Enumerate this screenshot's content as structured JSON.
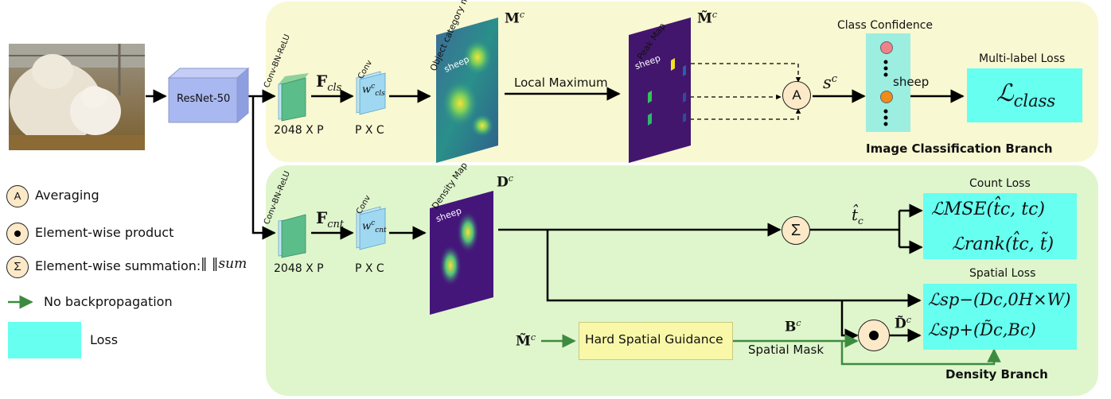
{
  "branches": {
    "classification": "Image Classification Branch",
    "density": "Density Branch"
  },
  "backbone": "ResNet-50",
  "cls_branch": {
    "block1_label": "Conv-BN-ReLU",
    "feature_symbol": "F",
    "feature_sub": "cls",
    "dim1": "2048 X P",
    "conv_label": "Conv",
    "conv_weight_sub": "cls",
    "dim2": "P X C",
    "map_title": "Object category map",
    "map_class": "sheep",
    "map_symbol": "M",
    "op_label": "Local Maximum",
    "peak_title": "Peak Map",
    "peak_class": "sheep",
    "peak_symbol": "M̃",
    "avg_letter": "A",
    "score_symbol": "s",
    "confidence_title": "Class Confidence",
    "confidence_class": "sheep",
    "loss_title": "Multi-label Loss",
    "loss_formula": "class"
  },
  "density_branch": {
    "block1_label": "Conv-BN-ReLU",
    "feature_symbol": "F",
    "feature_sub": "cnt",
    "dim1": "2048 X P",
    "conv_label": "Conv",
    "conv_weight_sub": "cnt",
    "dim2": "P X C",
    "map_title": "Density Map",
    "map_class": "sheep",
    "map_symbol": "D",
    "sum_glyph": "Σ",
    "count_symbol": "t̂",
    "count_loss_title": "Count Loss",
    "count_loss_1": "ℒMSE(t̂c, tc)",
    "count_loss_2": "ℒrank(t̂c, t̃)",
    "guidance_input": "M̃",
    "guidance_label": "Hard Spatial Guidance",
    "mask_symbol": "B",
    "mask_label": "Spatial Mask",
    "masked_symbol": "D̃",
    "spatial_loss_title": "Spatial Loss",
    "spatial_loss_1": "ℒsp−(Dc,0H×W)",
    "spatial_loss_2": "ℒsp+(D̃c,Bc)"
  },
  "legend": {
    "averaging": "Averaging",
    "averaging_glyph": "A",
    "product": "Element-wise product",
    "summation": "Element-wise summation:",
    "summation_glyph": "Σ",
    "summation_norm": "‖ ‖sum",
    "no_backprop": "No backpropagation",
    "loss": "Loss"
  },
  "colors": {
    "cls_bg": "#f8f8d2",
    "density_bg": "#dff6cc",
    "loss": "#66fff0",
    "resnet": "#a9b8f0",
    "green_arrow": "#3d8b40",
    "guidance": "#f8f8a8"
  }
}
